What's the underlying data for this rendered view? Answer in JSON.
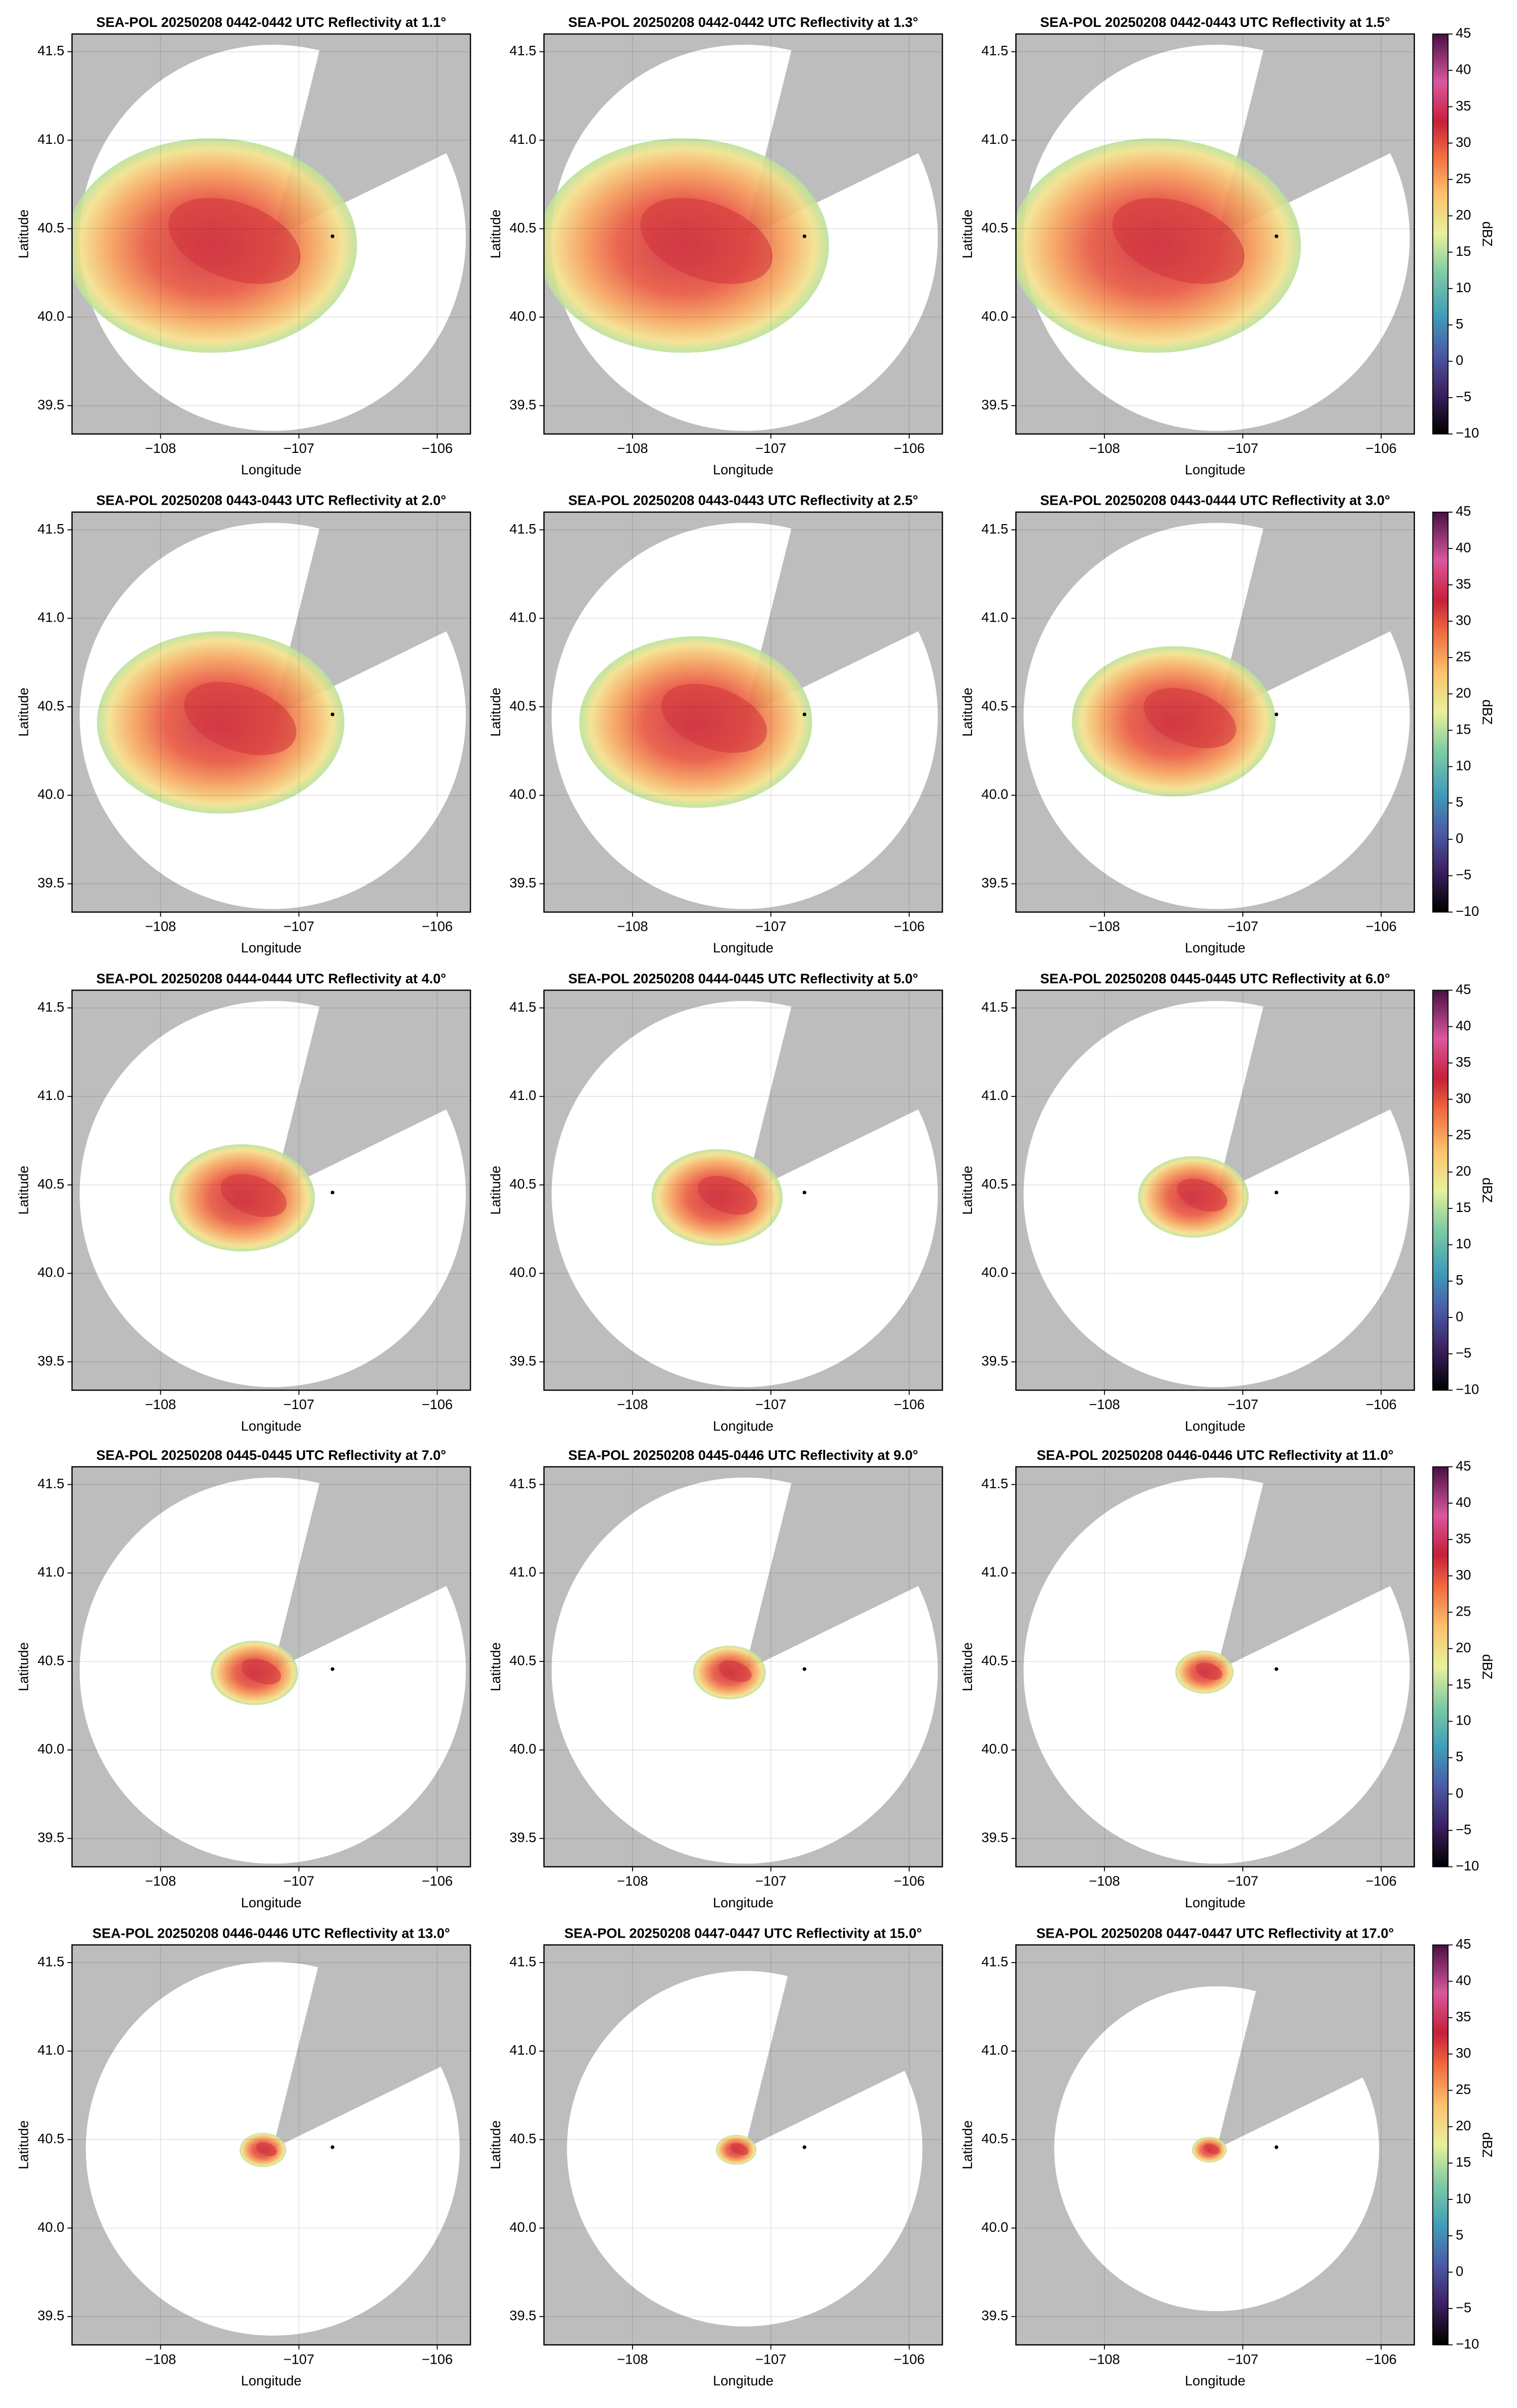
{
  "chart_data": [
    {
      "type": "ppi",
      "title": "SEA-POL 20250208 0442-0442 UTC Reflectivity at 1.1°",
      "x_label": "Longitude",
      "y_label": "Latitude",
      "xlim": [
        -108.64,
        -105.76
      ],
      "ylim": [
        39.34,
        41.6
      ],
      "xticks": [
        {
          "value": -108,
          "label": "−108"
        },
        {
          "value": -107,
          "label": "−107"
        },
        {
          "value": -106,
          "label": "−106"
        }
      ],
      "yticks": [
        39.5,
        {
          "value": 40,
          "label": "40.0"
        },
        40.5,
        {
          "value": 41,
          "label": "41.0"
        },
        41.5
      ],
      "grid": true
    },
    {
      "type": "ppi",
      "title": "SEA-POL 20250208 0442-0442 UTC Reflectivity at 1.3°",
      "x_label": "Longitude",
      "y_label": "Latitude",
      "xlim": [
        -108.64,
        -105.76
      ],
      "ylim": [
        39.34,
        41.6
      ],
      "xticks": [
        {
          "value": -108,
          "label": "−108"
        },
        {
          "value": -107,
          "label": "−107"
        },
        {
          "value": -106,
          "label": "−106"
        }
      ],
      "yticks": [
        39.5,
        {
          "value": 40,
          "label": "40.0"
        },
        40.5,
        {
          "value": 41,
          "label": "41.0"
        },
        41.5
      ],
      "grid": true
    },
    {
      "type": "ppi",
      "title": "SEA-POL 20250208 0442-0443 UTC Reflectivity at 1.5°",
      "x_label": "Longitude",
      "y_label": "Latitude",
      "xlim": [
        -108.64,
        -105.76
      ],
      "ylim": [
        39.34,
        41.6
      ],
      "xticks": [
        {
          "value": -108,
          "label": "−108"
        },
        {
          "value": -107,
          "label": "−107"
        },
        {
          "value": -106,
          "label": "−106"
        }
      ],
      "yticks": [
        39.5,
        {
          "value": 40,
          "label": "40.0"
        },
        40.5,
        {
          "value": 41,
          "label": "41.0"
        },
        41.5
      ],
      "grid": true,
      "colorbar": {
        "label": "dBZ",
        "lim": [
          -10,
          45
        ],
        "ticks": [
          {
            "value": -10,
            "label": "−10"
          },
          {
            "value": -5,
            "label": "−5"
          },
          0,
          5,
          10,
          15,
          20,
          25,
          30,
          35,
          40,
          45
        ]
      }
    },
    {
      "type": "ppi",
      "title": "SEA-POL 20250208 0443-0443 UTC Reflectivity at 2.0°",
      "x_label": "Longitude",
      "y_label": "Latitude",
      "xlim": [
        -108.64,
        -105.76
      ],
      "ylim": [
        39.34,
        41.6
      ],
      "xticks": [
        {
          "value": -108,
          "label": "−108"
        },
        {
          "value": -107,
          "label": "−107"
        },
        {
          "value": -106,
          "label": "−106"
        }
      ],
      "yticks": [
        39.5,
        {
          "value": 40,
          "label": "40.0"
        },
        40.5,
        {
          "value": 41,
          "label": "41.0"
        },
        41.5
      ],
      "grid": true
    },
    {
      "type": "ppi",
      "title": "SEA-POL 20250208 0443-0443 UTC Reflectivity at 2.5°",
      "x_label": "Longitude",
      "y_label": "Latitude",
      "xlim": [
        -108.64,
        -105.76
      ],
      "ylim": [
        39.34,
        41.6
      ],
      "xticks": [
        {
          "value": -108,
          "label": "−108"
        },
        {
          "value": -107,
          "label": "−107"
        },
        {
          "value": -106,
          "label": "−106"
        }
      ],
      "yticks": [
        39.5,
        {
          "value": 40,
          "label": "40.0"
        },
        40.5,
        {
          "value": 41,
          "label": "41.0"
        },
        41.5
      ],
      "grid": true
    },
    {
      "type": "ppi",
      "title": "SEA-POL 20250208 0443-0444 UTC Reflectivity at 3.0°",
      "x_label": "Longitude",
      "y_label": "Latitude",
      "xlim": [
        -108.64,
        -105.76
      ],
      "ylim": [
        39.34,
        41.6
      ],
      "xticks": [
        {
          "value": -108,
          "label": "−108"
        },
        {
          "value": -107,
          "label": "−107"
        },
        {
          "value": -106,
          "label": "−106"
        }
      ],
      "yticks": [
        39.5,
        {
          "value": 40,
          "label": "40.0"
        },
        40.5,
        {
          "value": 41,
          "label": "41.0"
        },
        41.5
      ],
      "grid": true,
      "colorbar": {
        "label": "dBZ",
        "lim": [
          -10,
          45
        ],
        "ticks": [
          {
            "value": -10,
            "label": "−10"
          },
          {
            "value": -5,
            "label": "−5"
          },
          0,
          5,
          10,
          15,
          20,
          25,
          30,
          35,
          40,
          45
        ]
      }
    },
    {
      "type": "ppi",
      "title": "SEA-POL 20250208 0444-0444 UTC Reflectivity at 4.0°",
      "x_label": "Longitude",
      "y_label": "Latitude",
      "xlim": [
        -108.64,
        -105.76
      ],
      "ylim": [
        39.34,
        41.6
      ],
      "xticks": [
        {
          "value": -108,
          "label": "−108"
        },
        {
          "value": -107,
          "label": "−107"
        },
        {
          "value": -106,
          "label": "−106"
        }
      ],
      "yticks": [
        39.5,
        {
          "value": 40,
          "label": "40.0"
        },
        40.5,
        {
          "value": 41,
          "label": "41.0"
        },
        41.5
      ],
      "grid": true
    },
    {
      "type": "ppi",
      "title": "SEA-POL 20250208 0444-0445 UTC Reflectivity at 5.0°",
      "x_label": "Longitude",
      "y_label": "Latitude",
      "xlim": [
        -108.64,
        -105.76
      ],
      "ylim": [
        39.34,
        41.6
      ],
      "xticks": [
        {
          "value": -108,
          "label": "−108"
        },
        {
          "value": -107,
          "label": "−107"
        },
        {
          "value": -106,
          "label": "−106"
        }
      ],
      "yticks": [
        39.5,
        {
          "value": 40,
          "label": "40.0"
        },
        40.5,
        {
          "value": 41,
          "label": "41.0"
        },
        41.5
      ],
      "grid": true
    },
    {
      "type": "ppi",
      "title": "SEA-POL 20250208 0445-0445 UTC Reflectivity at 6.0°",
      "x_label": "Longitude",
      "y_label": "Latitude",
      "xlim": [
        -108.64,
        -105.76
      ],
      "ylim": [
        39.34,
        41.6
      ],
      "xticks": [
        {
          "value": -108,
          "label": "−108"
        },
        {
          "value": -107,
          "label": "−107"
        },
        {
          "value": -106,
          "label": "−106"
        }
      ],
      "yticks": [
        39.5,
        {
          "value": 40,
          "label": "40.0"
        },
        40.5,
        {
          "value": 41,
          "label": "41.0"
        },
        41.5
      ],
      "grid": true,
      "colorbar": {
        "label": "dBZ",
        "lim": [
          -10,
          45
        ],
        "ticks": [
          {
            "value": -10,
            "label": "−10"
          },
          {
            "value": -5,
            "label": "−5"
          },
          0,
          5,
          10,
          15,
          20,
          25,
          30,
          35,
          40,
          45
        ]
      }
    },
    {
      "type": "ppi",
      "title": "SEA-POL 20250208 0445-0445 UTC Reflectivity at 7.0°",
      "x_label": "Longitude",
      "y_label": "Latitude",
      "xlim": [
        -108.64,
        -105.76
      ],
      "ylim": [
        39.34,
        41.6
      ],
      "xticks": [
        {
          "value": -108,
          "label": "−108"
        },
        {
          "value": -107,
          "label": "−107"
        },
        {
          "value": -106,
          "label": "−106"
        }
      ],
      "yticks": [
        39.5,
        {
          "value": 40,
          "label": "40.0"
        },
        40.5,
        {
          "value": 41,
          "label": "41.0"
        },
        41.5
      ],
      "grid": true
    },
    {
      "type": "ppi",
      "title": "SEA-POL 20250208 0445-0446 UTC Reflectivity at 9.0°",
      "x_label": "Longitude",
      "y_label": "Latitude",
      "xlim": [
        -108.64,
        -105.76
      ],
      "ylim": [
        39.34,
        41.6
      ],
      "xticks": [
        {
          "value": -108,
          "label": "−108"
        },
        {
          "value": -107,
          "label": "−107"
        },
        {
          "value": -106,
          "label": "−106"
        }
      ],
      "yticks": [
        39.5,
        {
          "value": 40,
          "label": "40.0"
        },
        40.5,
        {
          "value": 41,
          "label": "41.0"
        },
        41.5
      ],
      "grid": true
    },
    {
      "type": "ppi",
      "title": "SEA-POL 20250208 0446-0446 UTC Reflectivity at 11.0°",
      "x_label": "Longitude",
      "y_label": "Latitude",
      "xlim": [
        -108.64,
        -105.76
      ],
      "ylim": [
        39.34,
        41.6
      ],
      "xticks": [
        {
          "value": -108,
          "label": "−108"
        },
        {
          "value": -107,
          "label": "−107"
        },
        {
          "value": -106,
          "label": "−106"
        }
      ],
      "yticks": [
        39.5,
        {
          "value": 40,
          "label": "40.0"
        },
        40.5,
        {
          "value": 41,
          "label": "41.0"
        },
        41.5
      ],
      "grid": true,
      "colorbar": {
        "label": "dBZ",
        "lim": [
          -10,
          45
        ],
        "ticks": [
          {
            "value": -10,
            "label": "−10"
          },
          {
            "value": -5,
            "label": "−5"
          },
          0,
          5,
          10,
          15,
          20,
          25,
          30,
          35,
          40,
          45
        ]
      }
    },
    {
      "type": "ppi",
      "title": "SEA-POL 20250208 0446-0446 UTC Reflectivity at 13.0°",
      "x_label": "Longitude",
      "y_label": "Latitude",
      "xlim": [
        -108.64,
        -105.76
      ],
      "ylim": [
        39.34,
        41.6
      ],
      "xticks": [
        {
          "value": -108,
          "label": "−108"
        },
        {
          "value": -107,
          "label": "−107"
        },
        {
          "value": -106,
          "label": "−106"
        }
      ],
      "yticks": [
        39.5,
        {
          "value": 40,
          "label": "40.0"
        },
        40.5,
        {
          "value": 41,
          "label": "41.0"
        },
        41.5
      ],
      "grid": true
    },
    {
      "type": "ppi",
      "title": "SEA-POL 20250208 0447-0447 UTC Reflectivity at 15.0°",
      "x_label": "Longitude",
      "y_label": "Latitude",
      "xlim": [
        -108.64,
        -105.76
      ],
      "ylim": [
        39.34,
        41.6
      ],
      "xticks": [
        {
          "value": -108,
          "label": "−108"
        },
        {
          "value": -107,
          "label": "−107"
        },
        {
          "value": -106,
          "label": "−106"
        }
      ],
      "yticks": [
        39.5,
        {
          "value": 40,
          "label": "40.0"
        },
        40.5,
        {
          "value": 41,
          "label": "41.0"
        },
        41.5
      ],
      "grid": true
    },
    {
      "type": "ppi",
      "title": "SEA-POL 20250208 0447-0447 UTC Reflectivity at 17.0°",
      "x_label": "Longitude",
      "y_label": "Latitude",
      "xlim": [
        -108.64,
        -105.76
      ],
      "ylim": [
        39.34,
        41.6
      ],
      "xticks": [
        {
          "value": -108,
          "label": "−108"
        },
        {
          "value": -107,
          "label": "−107"
        },
        {
          "value": -106,
          "label": "−106"
        }
      ],
      "yticks": [
        39.5,
        {
          "value": 40,
          "label": "40.0"
        },
        40.5,
        {
          "value": 41,
          "label": "41.0"
        },
        41.5
      ],
      "grid": true,
      "colorbar": {
        "label": "dBZ",
        "lim": [
          -10,
          45
        ],
        "ticks": [
          {
            "value": -10,
            "label": "−10"
          },
          {
            "value": -5,
            "label": "−5"
          },
          0,
          5,
          10,
          15,
          20,
          25,
          30,
          35,
          40,
          45
        ]
      }
    }
  ]
}
